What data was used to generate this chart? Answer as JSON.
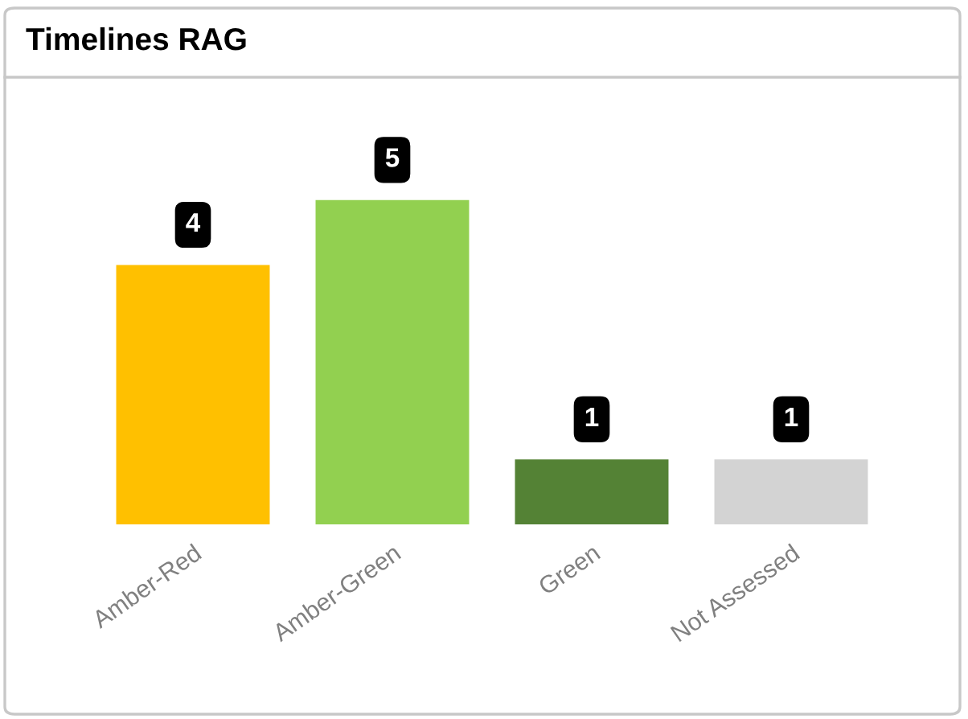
{
  "chart_data": {
    "type": "bar",
    "title": "Timelines RAG",
    "categories": [
      "Amber-Red",
      "Amber-Green",
      "Green",
      "Not Assessed"
    ],
    "values": [
      4,
      5,
      1,
      1
    ],
    "colors": [
      "#ffc000",
      "#92d050",
      "#548235",
      "#d3d3d3"
    ],
    "data_labels": true,
    "tick_labels": "x",
    "grid": false,
    "legend": false
  }
}
